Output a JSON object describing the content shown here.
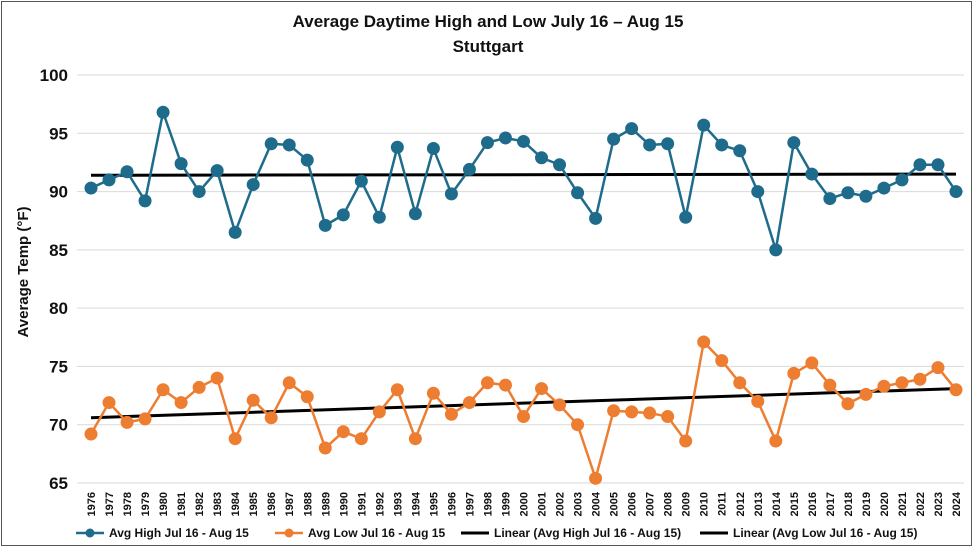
{
  "chart_data": {
    "type": "line",
    "title": "Average Daytime High and Low July 16 – Aug 15",
    "subtitle": "Stuttgart",
    "xlabel": "",
    "ylabel": "Average Temp (°F)",
    "ylim": [
      65,
      100
    ],
    "yticks": [
      65,
      70,
      75,
      80,
      85,
      90,
      95,
      100
    ],
    "grid": "horizontal",
    "legend_position": "bottom",
    "categories": [
      "1976",
      "1977",
      "1978",
      "1979",
      "1980",
      "1981",
      "1982",
      "1983",
      "1984",
      "1985",
      "1986",
      "1987",
      "1988",
      "1989",
      "1990",
      "1991",
      "1992",
      "1993",
      "1994",
      "1995",
      "1996",
      "1997",
      "1998",
      "1999",
      "2000",
      "2001",
      "2002",
      "2003",
      "2004",
      "2005",
      "2006",
      "2007",
      "2008",
      "2009",
      "2010",
      "2011",
      "2012",
      "2013",
      "2014",
      "2015",
      "2016",
      "2017",
      "2018",
      "2019",
      "2020",
      "2021",
      "2022",
      "2023",
      "2024"
    ],
    "series": [
      {
        "name": "Avg High Jul 16 - Aug 15",
        "color": "#1f6b8c",
        "values": [
          90.3,
          91.0,
          91.7,
          89.2,
          96.8,
          92.4,
          90.0,
          91.8,
          86.5,
          90.6,
          94.1,
          94.0,
          92.7,
          87.1,
          88.0,
          90.9,
          87.8,
          93.8,
          88.1,
          93.7,
          89.8,
          91.9,
          94.2,
          94.6,
          94.3,
          92.9,
          92.3,
          89.9,
          87.7,
          94.5,
          95.4,
          94.0,
          94.1,
          87.8,
          95.7,
          94.0,
          93.5,
          90.0,
          85.0,
          94.2,
          91.5,
          89.4,
          89.9,
          89.6,
          90.3,
          91.0,
          92.3,
          92.3,
          90.0
        ]
      },
      {
        "name": "Avg Low Jul 16 - Aug 15",
        "color": "#ed7d31",
        "values": [
          69.2,
          71.9,
          70.2,
          70.5,
          73.0,
          71.9,
          73.2,
          74.0,
          68.8,
          72.1,
          70.6,
          73.6,
          72.4,
          68.0,
          69.4,
          68.8,
          71.1,
          73.0,
          68.8,
          72.7,
          70.9,
          71.9,
          73.6,
          73.4,
          70.7,
          73.1,
          71.7,
          70.0,
          65.4,
          71.2,
          71.1,
          71.0,
          70.7,
          68.6,
          77.1,
          75.5,
          73.6,
          72.0,
          68.6,
          74.4,
          75.3,
          73.4,
          71.8,
          72.6,
          73.3,
          73.6,
          73.9,
          74.9,
          73.0
        ]
      },
      {
        "name": "Linear (Avg High Jul 16 - Aug 15)",
        "color": "#000000",
        "trend": [
          91.4,
          91.5
        ]
      },
      {
        "name": "Linear (Avg Low Jul 16 - Aug 15)",
        "color": "#000000",
        "trend": [
          70.6,
          73.1
        ]
      }
    ]
  }
}
